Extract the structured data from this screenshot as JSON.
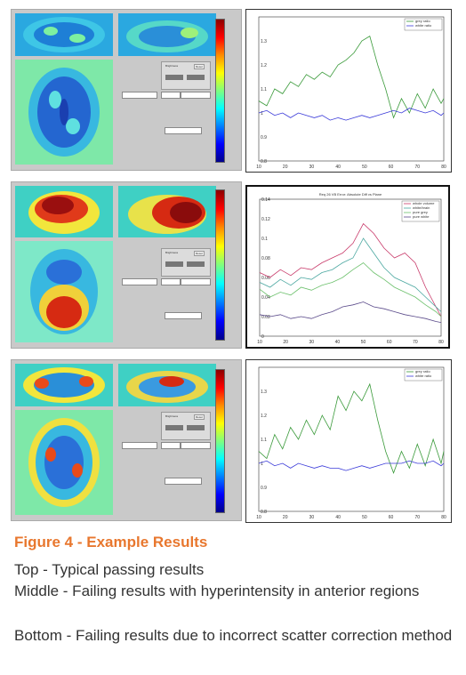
{
  "figure": {
    "title": "Figure 4 - Example Results",
    "descriptions": [
      "Top - Typical passing results",
      "Middle - Failing results with hyperintensity in anterior regions",
      "Bottom - Failing results due to incorrect scatter correction method"
    ]
  },
  "colors": {
    "caption_title": "#e8772e",
    "grey_ratio": "#3a9a3a",
    "white_ratio": "#3b3bd9",
    "plot_background": "#ffffff"
  },
  "gui_panels": [
    {
      "position": "top",
      "label": "Brightness",
      "button": "Reset"
    },
    {
      "position": "middle",
      "label": "Brightness",
      "button": "Reset"
    },
    {
      "position": "bottom",
      "label": "Brightness",
      "button": "Reset"
    }
  ],
  "chart_data": [
    {
      "type": "line",
      "position": "top",
      "title": "",
      "x": [
        10,
        13,
        16,
        19,
        22,
        25,
        28,
        31,
        34,
        37,
        40,
        43,
        46,
        49,
        52,
        55,
        58,
        61,
        64,
        67,
        70,
        73,
        76,
        79,
        80
      ],
      "series": [
        {
          "name": "grey ratio",
          "values": [
            1.05,
            1.03,
            1.1,
            1.08,
            1.13,
            1.11,
            1.16,
            1.14,
            1.17,
            1.15,
            1.2,
            1.22,
            1.25,
            1.3,
            1.32,
            1.2,
            1.1,
            0.98,
            1.06,
            1.0,
            1.08,
            1.02,
            1.1,
            1.04,
            1.06
          ]
        },
        {
          "name": "white ratio",
          "values": [
            1.0,
            1.01,
            0.99,
            1.0,
            0.98,
            1.0,
            0.99,
            0.98,
            0.99,
            0.97,
            0.98,
            0.97,
            0.98,
            0.99,
            0.98,
            0.99,
            1.0,
            1.01,
            1.0,
            1.02,
            1.01,
            1.0,
            1.01,
            0.99,
            1.0
          ]
        }
      ],
      "xlabel": "",
      "ylabel": "",
      "xlim": [
        10,
        80
      ],
      "ylim": [
        0.8,
        1.4
      ],
      "x_ticks": [
        "10",
        "20",
        "30",
        "40",
        "50",
        "60",
        "70",
        "80"
      ],
      "y_ticks": [
        "0.8",
        "0.9",
        "1",
        "1.1",
        "1.2",
        "1.3"
      ],
      "legend": "top-right"
    },
    {
      "type": "line",
      "position": "middle",
      "title": "Req 26 VB Error: Absolute Diff vs Plane",
      "x": [
        10,
        14,
        18,
        22,
        26,
        30,
        34,
        38,
        42,
        46,
        50,
        54,
        58,
        62,
        66,
        70,
        74,
        78,
        80
      ],
      "series": [
        {
          "name": "whole volume",
          "values": [
            0.065,
            0.06,
            0.068,
            0.062,
            0.07,
            0.068,
            0.075,
            0.08,
            0.085,
            0.095,
            0.115,
            0.105,
            0.09,
            0.08,
            0.085,
            0.075,
            0.05,
            0.03,
            0.02
          ]
        },
        {
          "name": "white/brain",
          "values": [
            0.055,
            0.05,
            0.058,
            0.052,
            0.06,
            0.058,
            0.065,
            0.068,
            0.075,
            0.08,
            0.1,
            0.085,
            0.07,
            0.06,
            0.055,
            0.05,
            0.04,
            0.03,
            0.025
          ]
        },
        {
          "name": "pure grey",
          "values": [
            0.048,
            0.04,
            0.045,
            0.042,
            0.05,
            0.047,
            0.052,
            0.055,
            0.06,
            0.068,
            0.075,
            0.065,
            0.058,
            0.05,
            0.045,
            0.04,
            0.032,
            0.025,
            0.02
          ]
        },
        {
          "name": "pure white",
          "values": [
            0.022,
            0.02,
            0.022,
            0.018,
            0.02,
            0.018,
            0.022,
            0.025,
            0.03,
            0.032,
            0.035,
            0.03,
            0.028,
            0.025,
            0.022,
            0.02,
            0.018,
            0.015,
            0.014
          ]
        }
      ],
      "xlabel": "",
      "ylabel": "",
      "xlim": [
        10,
        80
      ],
      "ylim": [
        0,
        0.14
      ],
      "x_ticks": [
        "10",
        "20",
        "30",
        "40",
        "50",
        "60",
        "70",
        "80"
      ],
      "y_ticks": [
        "0",
        "0.02",
        "0.04",
        "0.06",
        "0.08",
        "0.1",
        "0.12",
        "0.14"
      ],
      "legend": "top-right"
    },
    {
      "type": "line",
      "position": "bottom",
      "title": "",
      "x": [
        10,
        13,
        16,
        19,
        22,
        25,
        28,
        31,
        34,
        37,
        40,
        43,
        46,
        49,
        52,
        55,
        58,
        61,
        64,
        67,
        70,
        73,
        76,
        79,
        80
      ],
      "series": [
        {
          "name": "grey ratio",
          "values": [
            1.05,
            1.02,
            1.12,
            1.06,
            1.15,
            1.1,
            1.18,
            1.12,
            1.2,
            1.14,
            1.28,
            1.22,
            1.3,
            1.26,
            1.33,
            1.18,
            1.05,
            0.96,
            1.05,
            0.98,
            1.08,
            0.99,
            1.1,
            1.0,
            1.05
          ]
        },
        {
          "name": "white ratio",
          "values": [
            1.0,
            1.01,
            0.99,
            1.0,
            0.98,
            1.0,
            0.99,
            0.98,
            0.99,
            0.98,
            0.98,
            0.97,
            0.98,
            0.99,
            0.98,
            0.99,
            1.0,
            1.0,
            1.0,
            1.01,
            1.0,
            1.0,
            1.01,
            0.99,
            1.0
          ]
        }
      ],
      "xlabel": "",
      "ylabel": "",
      "xlim": [
        10,
        80
      ],
      "ylim": [
        0.8,
        1.4
      ],
      "x_ticks": [
        "10",
        "20",
        "30",
        "40",
        "50",
        "60",
        "70",
        "80"
      ],
      "y_ticks": [
        "0.8",
        "0.9",
        "1",
        "1.1",
        "1.2",
        "1.3"
      ],
      "legend": "top-right"
    }
  ]
}
